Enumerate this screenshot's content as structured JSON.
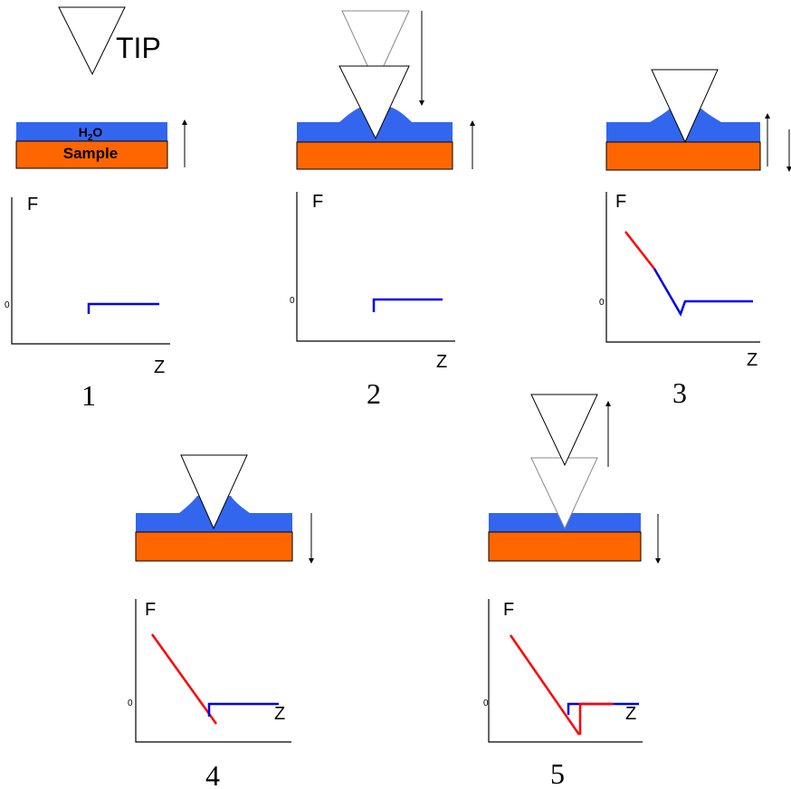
{
  "tip_label": "TIP",
  "water_label": {
    "base": "H",
    "subscript": "2",
    "rest": "O"
  },
  "sample_label": "Sample",
  "panels": [
    {
      "number": "1",
      "y_label": "F",
      "x_label": "Z",
      "zero_label": "0"
    },
    {
      "number": "2",
      "y_label": "F",
      "x_label": "Z",
      "zero_label": "0"
    },
    {
      "number": "3",
      "y_label": "F",
      "x_label": "Z",
      "zero_label": "0"
    },
    {
      "number": "4",
      "y_label": "F",
      "x_label": "Z",
      "zero_label": "0"
    },
    {
      "number": "5",
      "y_label": "F",
      "x_label": "Z",
      "zero_label": "0"
    }
  ]
}
